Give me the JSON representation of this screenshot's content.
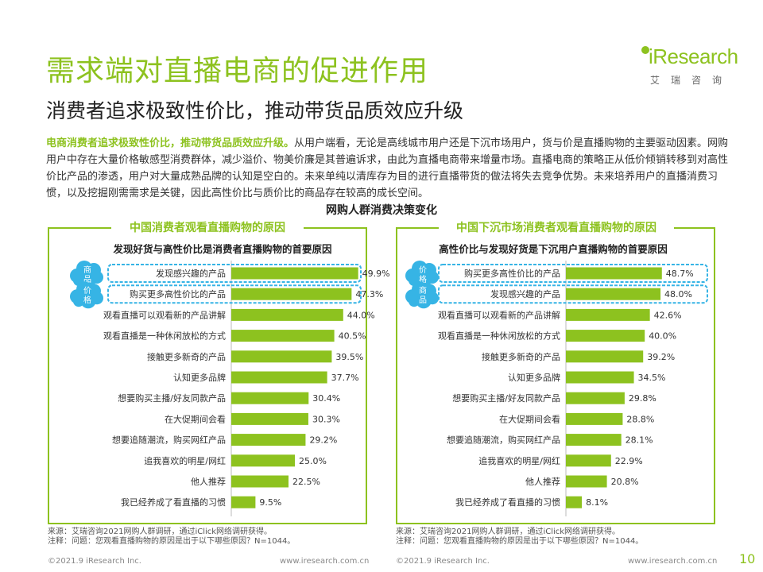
{
  "header": {
    "title": "需求端对直播电商的促进作用",
    "subtitle": "消费者追求极致性价比，推动带货品质效应升级"
  },
  "logo": {
    "name": "iResearch",
    "cn": "艾瑞咨询"
  },
  "paragraph": {
    "highlight": "电商消费者追求极致性价比，推动带货品质效应升级。",
    "body": "从用户端看，无论是高线城市用户还是下沉市场用户，货与价是直播购物的主要驱动因素。网购用户中存在大量价格敏感型消费群体，减少溢价、物美价廉是其普遍诉求，由此为直播电商带来增量市场。直播电商的策略正从低价倾销转移到对高性价比产品的渗透，用户对大量成熟品牌的认知是空白的。未来单纯以清库存为目的进行直播带货的做法将失去竞争优势。未来培养用户的直播消费习惯，以及挖掘刚需需求是关键，因此高性价比与质价比的商品存在较高的成长空间。"
  },
  "section_title": "网购人群消费决策变化",
  "colors": {
    "accent": "#8dc21f",
    "highlight_box": "#36b4e5",
    "cloud": "#36b4e5"
  },
  "chart_data": [
    {
      "type": "bar",
      "orientation": "horizontal",
      "panel_title": "中国消费者观看直播购物的原因",
      "title": "发现好货与高性价比是消费者直播购物的首要原因",
      "categories": [
        "发现感兴趣的产品",
        "购买更多高性价比的产品",
        "观看直播可以观看新的产品讲解",
        "观看直播是一种休闲放松的方式",
        "接触更多新奇的产品",
        "认知更多品牌",
        "想要购买主播/好友同款产品",
        "在大促期间会看",
        "想要追随潮流，购买网红产品",
        "追我喜欢的明星/网红",
        "他人推荐",
        "我已经养成了看直播的习惯"
      ],
      "values": [
        49.9,
        47.3,
        44.0,
        40.5,
        39.5,
        37.7,
        30.4,
        30.3,
        29.2,
        25.0,
        22.5,
        9.5
      ],
      "value_labels": [
        "49.9%",
        "47.3%",
        "44.0%",
        "40.5%",
        "39.5%",
        "37.7%",
        "30.4%",
        "30.3%",
        "29.2%",
        "25.0%",
        "22.5%",
        "9.5%"
      ],
      "xlim": [
        0,
        60
      ],
      "callouts": [
        "商品",
        "价格"
      ],
      "note_lines": [
        "来源：艾瑞咨询2021网购人群调研，通过iClick网络调研获得。",
        "注释：问题：您观看直播购物的原因是出于以下哪些原因？N=1044。"
      ]
    },
    {
      "type": "bar",
      "orientation": "horizontal",
      "panel_title": "中国下沉市场消费者观看直播购物的原因",
      "title": "高性价比与发现好货是下沉用户直播购物的首要原因",
      "categories": [
        "购买更多高性价比的产品",
        "发现感兴趣的产品",
        "观看直播可以观看新的产品讲解",
        "观看直播是一种休闲放松的方式",
        "接触更多新奇的产品",
        "认知更多品牌",
        "想要购买主播/好友同款产品",
        "在大促期间会看",
        "想要追随潮流，购买网红产品",
        "追我喜欢的明星/网红",
        "他人推荐",
        "我已经养成了看直播的习惯"
      ],
      "values": [
        48.7,
        48.0,
        42.6,
        40.0,
        39.2,
        34.5,
        29.8,
        28.8,
        28.1,
        22.9,
        20.8,
        8.1
      ],
      "value_labels": [
        "48.7%",
        "48.0%",
        "42.6%",
        "40.0%",
        "39.2%",
        "34.5%",
        "29.8%",
        "28.8%",
        "28.1%",
        "22.9%",
        "20.8%",
        "8.1%"
      ],
      "xlim": [
        0,
        60
      ],
      "callouts": [
        "价格",
        "商品"
      ],
      "note_lines": [
        "来源：艾瑞咨询2021网购人群调研，通过iClick网络调研获得。",
        "注释：问题：您观看直播购物的原因是出于以下哪些原因？N=1044。"
      ]
    }
  ],
  "footer": {
    "left1": "©2021.9 iResearch Inc.",
    "right1": "www.iresearch.com.cn",
    "left2": "©2021.9 iResearch Inc.",
    "right2": "www.iresearch.com.cn",
    "page": "10"
  }
}
